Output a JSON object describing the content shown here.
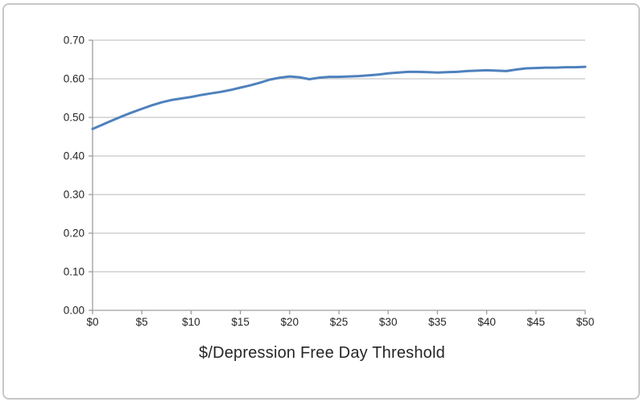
{
  "chart_data": {
    "type": "line",
    "title": "",
    "xlabel": "$/Depression Free Day Threshold",
    "ylabel": "",
    "x": [
      0,
      1,
      2,
      3,
      4,
      5,
      6,
      7,
      8,
      9,
      10,
      11,
      12,
      13,
      14,
      15,
      16,
      17,
      18,
      19,
      20,
      21,
      22,
      23,
      24,
      25,
      26,
      27,
      28,
      29,
      30,
      31,
      32,
      33,
      34,
      35,
      36,
      37,
      38,
      39,
      40,
      41,
      42,
      43,
      44,
      45,
      46,
      47,
      48,
      49,
      50
    ],
    "values": [
      0.47,
      0.481,
      0.492,
      0.503,
      0.513,
      0.522,
      0.531,
      0.539,
      0.545,
      0.549,
      0.553,
      0.558,
      0.562,
      0.566,
      0.571,
      0.577,
      0.583,
      0.59,
      0.598,
      0.603,
      0.606,
      0.604,
      0.599,
      0.603,
      0.605,
      0.605,
      0.606,
      0.607,
      0.609,
      0.611,
      0.614,
      0.616,
      0.618,
      0.618,
      0.617,
      0.616,
      0.617,
      0.618,
      0.62,
      0.621,
      0.622,
      0.621,
      0.62,
      0.624,
      0.627,
      0.628,
      0.629,
      0.629,
      0.63,
      0.63,
      0.631
    ],
    "xlim": [
      0,
      50
    ],
    "ylim": [
      0,
      0.7
    ],
    "x_tick_labels": [
      "$0",
      "$5",
      "$10",
      "$15",
      "$20",
      "$25",
      "$30",
      "$35",
      "$40",
      "$45",
      "$50"
    ],
    "x_tick_values": [
      0,
      5,
      10,
      15,
      20,
      25,
      30,
      35,
      40,
      45,
      50
    ],
    "y_tick_labels": [
      "0.00",
      "0.10",
      "0.20",
      "0.30",
      "0.40",
      "0.50",
      "0.60",
      "0.70"
    ],
    "y_tick_values": [
      0.0,
      0.1,
      0.2,
      0.3,
      0.4,
      0.5,
      0.6,
      0.7
    ],
    "grid": "horizontal gridlines on",
    "legend": "none"
  },
  "colors": {
    "line": "#4f81bd",
    "gridline": "#c6c6c6",
    "axis": "#9d9d9d",
    "frame_border": "#c7c7c7",
    "text": "#262626",
    "background": "#ffffff"
  }
}
